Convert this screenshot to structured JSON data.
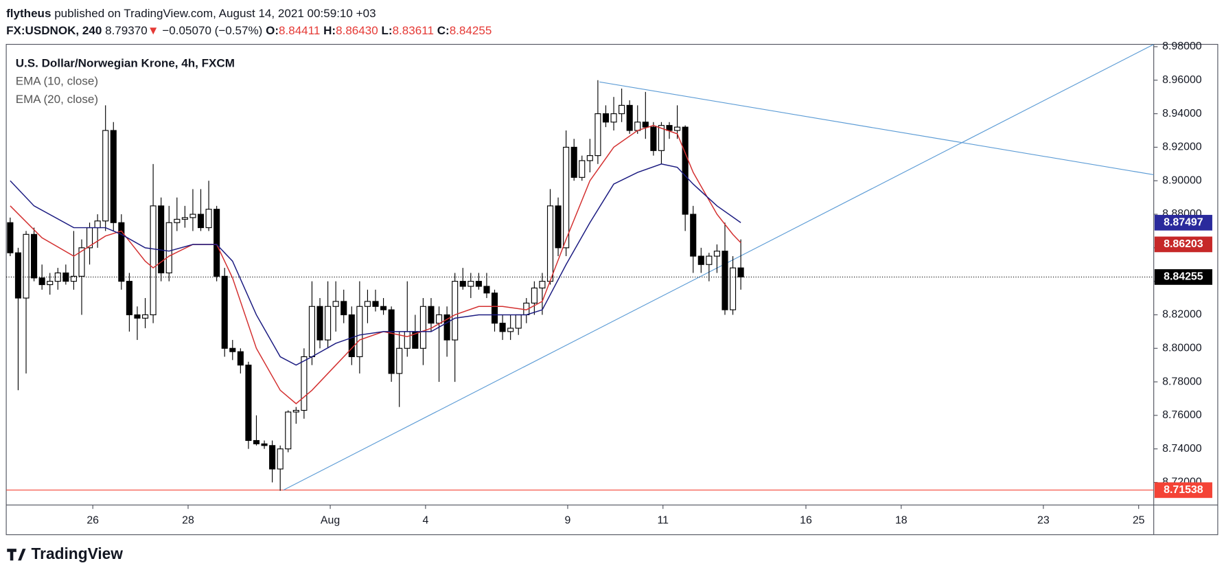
{
  "header": {
    "author": "flytheus",
    "published": " published on TradingView.com, August 14, 2021 00:59:10 +03",
    "symbol": "FX:USDNOK, 240",
    "last": "8.79370",
    "arrow": "▼",
    "change": "−0.05070 (−0.57%)",
    "o_label": "O:",
    "o": "8.84411",
    "h_label": "H:",
    "h": "8.86430",
    "l_label": "L:",
    "l": "8.83611",
    "c_label": "C:",
    "c": "8.84255"
  },
  "footer": {
    "brand": "TradingView"
  },
  "chart_data": {
    "type": "candlestick",
    "legend": [
      "U.S. Dollar/Norwegian Krone, 4h, FXCM",
      "EMA (10, close)",
      "EMA (20, close)"
    ],
    "up_color": "#ffffff",
    "down_color": "#000000",
    "open": [
      8.875,
      8.857,
      8.83,
      8.868,
      8.842,
      8.838,
      8.84,
      8.845,
      8.84,
      8.843,
      8.86,
      8.872,
      8.876,
      8.93,
      8.875,
      8.84,
      8.82,
      8.818,
      8.82,
      8.885,
      8.845,
      8.875,
      8.877,
      8.878,
      8.88,
      8.872,
      8.883,
      8.843,
      8.8,
      8.798,
      8.79,
      8.745,
      8.743,
      8.742,
      8.728,
      8.74,
      8.762,
      8.763,
      8.795,
      8.825,
      8.805,
      8.825,
      8.828,
      8.82,
      8.795,
      8.825,
      8.828,
      8.825,
      8.823,
      8.785,
      8.8,
      8.81,
      8.8,
      8.825,
      8.815,
      8.82,
      8.805,
      8.84,
      8.837,
      8.84,
      8.837,
      8.833,
      8.815,
      8.81,
      8.812,
      8.82,
      8.827,
      8.836,
      8.84,
      8.885,
      8.86,
      8.92,
      8.902,
      8.912,
      8.915,
      8.94,
      8.935,
      8.94,
      8.945,
      8.93,
      8.935,
      8.932,
      8.918,
      8.933,
      8.93,
      8.932,
      8.88,
      8.855,
      8.85,
      8.855,
      8.858,
      8.823,
      8.848
    ],
    "high": [
      8.878,
      8.86,
      8.87,
      8.872,
      8.85,
      8.845,
      8.848,
      8.85,
      8.87,
      8.865,
      8.875,
      8.88,
      8.945,
      8.935,
      8.88,
      8.845,
      8.825,
      8.83,
      8.91,
      8.89,
      8.885,
      8.89,
      8.885,
      8.895,
      8.895,
      8.9,
      8.885,
      8.848,
      8.805,
      8.8,
      8.792,
      8.76,
      8.745,
      8.745,
      8.742,
      8.763,
      8.765,
      8.8,
      8.84,
      8.83,
      8.84,
      8.84,
      8.835,
      8.825,
      8.84,
      8.835,
      8.835,
      8.83,
      8.825,
      8.81,
      8.84,
      8.82,
      8.83,
      8.83,
      8.825,
      8.825,
      8.845,
      8.848,
      8.845,
      8.845,
      8.845,
      8.835,
      8.82,
      8.82,
      8.82,
      8.83,
      8.84,
      8.845,
      8.895,
      8.89,
      8.93,
      8.925,
      8.915,
      8.925,
      8.96,
      8.945,
      8.95,
      8.955,
      8.948,
      8.945,
      8.953,
      8.935,
      8.935,
      8.935,
      8.945,
      8.933,
      8.885,
      8.86,
      8.857,
      8.862,
      8.875,
      8.855,
      8.865
    ],
    "low": [
      8.855,
      8.775,
      8.785,
      8.84,
      8.835,
      8.832,
      8.835,
      8.838,
      8.835,
      8.82,
      8.85,
      8.86,
      8.87,
      8.87,
      8.835,
      8.81,
      8.805,
      8.812,
      8.815,
      8.84,
      8.84,
      8.87,
      8.872,
      8.87,
      8.87,
      8.87,
      8.84,
      8.795,
      8.793,
      8.785,
      8.74,
      8.742,
      8.74,
      8.72,
      8.715,
      8.738,
      8.755,
      8.758,
      8.79,
      8.8,
      8.8,
      8.81,
      8.815,
      8.79,
      8.785,
      8.815,
      8.822,
      8.82,
      8.78,
      8.765,
      8.795,
      8.8,
      8.79,
      8.81,
      8.78,
      8.795,
      8.78,
      8.835,
      8.83,
      8.835,
      8.83,
      8.81,
      8.805,
      8.805,
      8.808,
      8.815,
      8.82,
      8.82,
      8.838,
      8.855,
      8.855,
      8.9,
      8.9,
      8.905,
      8.91,
      8.932,
      8.93,
      8.935,
      8.928,
      8.928,
      8.925,
      8.915,
      8.91,
      8.925,
      8.925,
      8.87,
      8.845,
      8.845,
      8.84,
      8.845,
      8.82,
      8.82,
      8.835
    ],
    "close": [
      8.857,
      8.83,
      8.868,
      8.842,
      8.838,
      8.84,
      8.845,
      8.84,
      8.843,
      8.86,
      8.872,
      8.876,
      8.93,
      8.875,
      8.84,
      8.82,
      8.818,
      8.82,
      8.885,
      8.845,
      8.875,
      8.877,
      8.878,
      8.88,
      8.872,
      8.883,
      8.843,
      8.8,
      8.798,
      8.79,
      8.745,
      8.743,
      8.742,
      8.728,
      8.74,
      8.762,
      8.763,
      8.795,
      8.825,
      8.805,
      8.825,
      8.828,
      8.82,
      8.795,
      8.825,
      8.828,
      8.825,
      8.823,
      8.785,
      8.8,
      8.81,
      8.8,
      8.825,
      8.815,
      8.82,
      8.805,
      8.84,
      8.837,
      8.84,
      8.837,
      8.833,
      8.815,
      8.81,
      8.812,
      8.82,
      8.827,
      8.836,
      8.84,
      8.885,
      8.86,
      8.92,
      8.902,
      8.912,
      8.915,
      8.94,
      8.935,
      8.94,
      8.945,
      8.93,
      8.935,
      8.932,
      8.918,
      8.933,
      8.93,
      8.932,
      8.88,
      8.855,
      8.85,
      8.855,
      8.858,
      8.823,
      8.848,
      8.8426
    ],
    "series": [
      {
        "name": "EMA (10, close)",
        "color": "#d32f2f",
        "x": [
          0,
          4,
          8,
          12,
          14,
          17,
          18,
          20,
          23,
          26,
          28,
          31,
          34,
          36,
          38,
          41,
          44,
          47,
          50,
          53,
          56,
          59,
          62,
          65,
          67,
          70,
          73,
          76,
          79,
          81,
          84,
          86,
          89,
          91,
          92
        ],
        "values": [
          8.885,
          8.866,
          8.855,
          8.867,
          8.87,
          8.852,
          8.848,
          8.855,
          8.862,
          8.862,
          8.842,
          8.8,
          8.775,
          8.767,
          8.775,
          8.79,
          8.805,
          8.81,
          8.807,
          8.812,
          8.82,
          8.825,
          8.825,
          8.823,
          8.828,
          8.865,
          8.9,
          8.92,
          8.93,
          8.933,
          8.928,
          8.905,
          8.88,
          8.868,
          8.863
        ]
      },
      {
        "name": "EMA (20, close)",
        "color": "#1a1a80",
        "x": [
          0,
          3,
          8,
          12,
          14,
          17,
          20,
          23,
          26,
          28,
          31,
          34,
          36,
          38,
          41,
          44,
          47,
          50,
          53,
          56,
          59,
          62,
          65,
          67,
          70,
          73,
          76,
          79,
          82,
          84,
          86,
          89,
          92
        ],
        "values": [
          8.9,
          8.885,
          8.872,
          8.872,
          8.868,
          8.86,
          8.858,
          8.862,
          8.862,
          8.852,
          8.82,
          8.795,
          8.79,
          8.795,
          8.803,
          8.808,
          8.81,
          8.81,
          8.81,
          8.818,
          8.82,
          8.82,
          8.82,
          8.823,
          8.85,
          8.875,
          8.898,
          8.905,
          8.91,
          8.908,
          8.898,
          8.885,
          8.875
        ]
      }
    ],
    "drawings": [
      {
        "color": "#f44336",
        "x": [
          -0.5,
          144
        ],
        "values": [
          8.71538,
          8.71538
        ]
      },
      {
        "color": "#5b9bd5",
        "x": [
          34.4,
          144
        ],
        "values": [
          8.7154,
          8.9814
        ]
      },
      {
        "color": "#5b9bd5",
        "x": [
          74.2,
          144
        ],
        "values": [
          8.959,
          8.9036
        ]
      }
    ],
    "price_labels": [
      {
        "value": 8.87497,
        "color": "#2a2a9c"
      },
      {
        "value": 8.86203,
        "color": "#c62828"
      },
      {
        "value": 8.84255,
        "color": "#000000",
        "dotted": true
      },
      {
        "value": 8.71538,
        "color": "#f44336"
      }
    ],
    "xlim": [
      -0.5,
      144
    ],
    "xticks": [
      {
        "value": 10.4,
        "label": "26"
      },
      {
        "value": 22.4,
        "label": "28"
      },
      {
        "value": 40.3,
        "label": "Aug"
      },
      {
        "value": 52.3,
        "label": "4"
      },
      {
        "value": 70.2,
        "label": "9"
      },
      {
        "value": 82.2,
        "label": "11"
      },
      {
        "value": 100.2,
        "label": "16"
      },
      {
        "value": 112.2,
        "label": "18"
      },
      {
        "value": 130.1,
        "label": "23"
      },
      {
        "value": 142.1,
        "label": "25"
      }
    ],
    "ylim": [
      8.7065,
      8.9814
    ],
    "yticks": [
      {
        "value": 8.72,
        "label": "8.72000"
      },
      {
        "value": 8.74,
        "label": "8.74000"
      },
      {
        "value": 8.76,
        "label": "8.76000"
      },
      {
        "value": 8.78,
        "label": "8.78000"
      },
      {
        "value": 8.8,
        "label": "8.80000"
      },
      {
        "value": 8.82,
        "label": "8.82000"
      },
      {
        "value": 8.84,
        "label": "8.84000"
      },
      {
        "value": 8.86,
        "label": "8.86000"
      },
      {
        "value": 8.88,
        "label": "8.88000"
      },
      {
        "value": 8.9,
        "label": "8.90000"
      },
      {
        "value": 8.92,
        "label": "8.92000"
      },
      {
        "value": 8.94,
        "label": "8.94000"
      },
      {
        "value": 8.96,
        "label": "8.96000"
      },
      {
        "value": 8.98,
        "label": "8.98000"
      }
    ]
  }
}
